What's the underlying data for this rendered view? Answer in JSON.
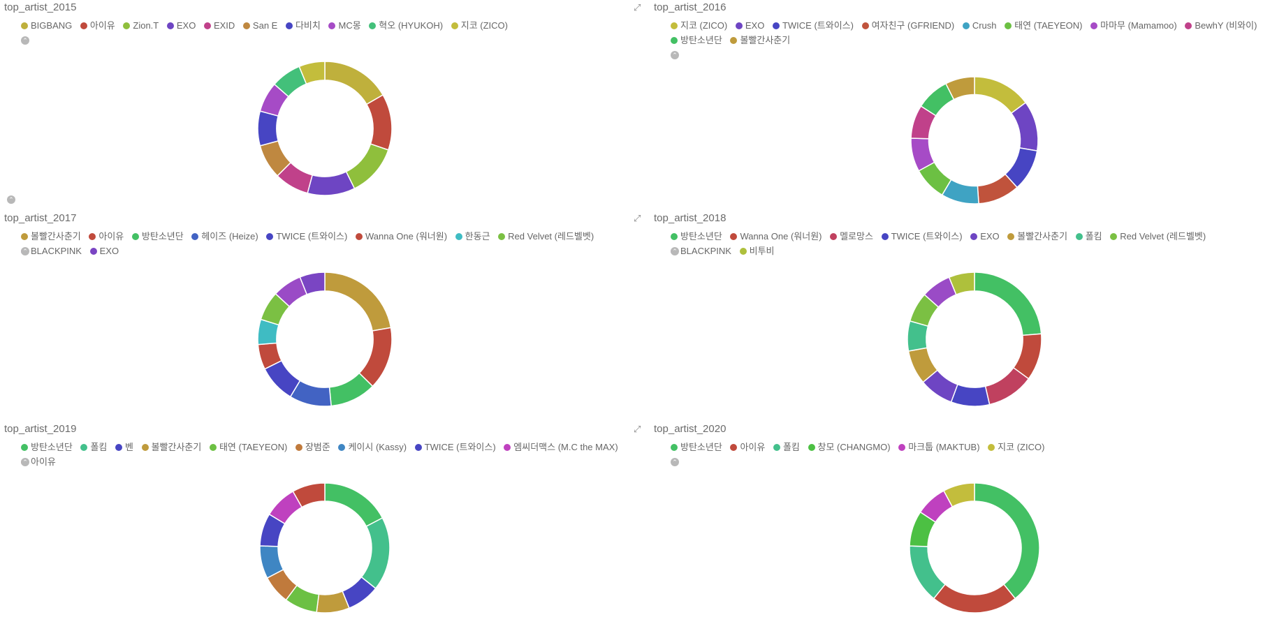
{
  "dashboard": {
    "panels": [
      {
        "title": "top_artist_2015",
        "legend": [
          {
            "label": "BIGBANG",
            "color": "#bfb03c"
          },
          {
            "label": "아이유",
            "color": "#c04a3c"
          },
          {
            "label": "Zion.T",
            "color": "#8fbf3c"
          },
          {
            "label": "EXO",
            "color": "#6e45c3"
          },
          {
            "label": "EXID",
            "color": "#c0418a"
          },
          {
            "label": "San E",
            "color": "#bf8840"
          },
          {
            "label": "다비치",
            "color": "#4745c3"
          },
          {
            "label": "MC몽",
            "color": "#a64bc6"
          },
          {
            "label": "혁오 (HYUKOH)",
            "color": "#43c07a"
          },
          {
            "label": "지코 (ZICO)",
            "color": "#c3bd3c"
          }
        ]
      },
      {
        "title": "top_artist_2016",
        "legend": [
          {
            "label": "지코 (ZICO)",
            "color": "#c3bd3c"
          },
          {
            "label": "EXO",
            "color": "#6e45c3"
          },
          {
            "label": "TWICE (트와이스)",
            "color": "#4745c3"
          },
          {
            "label": "여자친구 (GFRIEND)",
            "color": "#c0533c"
          },
          {
            "label": "Crush",
            "color": "#3fa3c3"
          },
          {
            "label": "태연 (TAEYEON)",
            "color": "#6cc043"
          },
          {
            "label": "마마무 (Mamamoo)",
            "color": "#a64bc6"
          },
          {
            "label": "BewhY (비와이)",
            "color": "#c0418a"
          },
          {
            "label": "방탄소년단",
            "color": "#43c064"
          },
          {
            "label": "볼빨간사춘기",
            "color": "#bf9b3c"
          }
        ]
      },
      {
        "title": "top_artist_2017",
        "legend": [
          {
            "label": "볼빨간사춘기",
            "color": "#bf9b3c"
          },
          {
            "label": "아이유",
            "color": "#c04a3c"
          },
          {
            "label": "방탄소년단",
            "color": "#43c064"
          },
          {
            "label": "헤이즈 (Heize)",
            "color": "#4263c3"
          },
          {
            "label": "TWICE (트와이스)",
            "color": "#4745c3"
          },
          {
            "label": "Wanna One (워너원)",
            "color": "#c04a3c"
          },
          {
            "label": "한동근",
            "color": "#3fbcc3"
          },
          {
            "label": "Red Velvet (레드벨벳)",
            "color": "#7bc043"
          },
          {
            "label": "BLACKPINK",
            "color": "#9a4bc6"
          },
          {
            "label": "EXO",
            "color": "#7a45c3"
          }
        ]
      },
      {
        "title": "top_artist_2018",
        "legend": [
          {
            "label": "방탄소년단",
            "color": "#43c064"
          },
          {
            "label": "Wanna One (워너원)",
            "color": "#c04a3c"
          },
          {
            "label": "멜로망스",
            "color": "#c0415f"
          },
          {
            "label": "TWICE (트와이스)",
            "color": "#4745c3"
          },
          {
            "label": "EXO",
            "color": "#6e45c3"
          },
          {
            "label": "볼빨간사춘기",
            "color": "#bf9b3c"
          },
          {
            "label": "폴킴",
            "color": "#43c08c"
          },
          {
            "label": "Red Velvet (레드벨벳)",
            "color": "#7bc043"
          },
          {
            "label": "BLACKPINK",
            "color": "#9a4bc6"
          },
          {
            "label": "비투비",
            "color": "#aec03c"
          }
        ]
      },
      {
        "title": "top_artist_2019",
        "legend": [
          {
            "label": "방탄소년단",
            "color": "#43c064"
          },
          {
            "label": "폴킴",
            "color": "#43c08c"
          },
          {
            "label": "벤",
            "color": "#4745c3"
          },
          {
            "label": "볼빨간사춘기",
            "color": "#bf9b3c"
          },
          {
            "label": "태연 (TAEYEON)",
            "color": "#6cc043"
          },
          {
            "label": "장범준",
            "color": "#c07a3c"
          },
          {
            "label": "케이시 (Kassy)",
            "color": "#3f86c3"
          },
          {
            "label": "TWICE (트와이스)",
            "color": "#4745c3"
          },
          {
            "label": "엠씨더맥스 (M.C the MAX)",
            "color": "#bf41bf"
          },
          {
            "label": "아이유",
            "color": "#c04a3c"
          }
        ]
      },
      {
        "title": "top_artist_2020",
        "legend": [
          {
            "label": "방탄소년단",
            "color": "#43c064"
          },
          {
            "label": "아이유",
            "color": "#c04a3c"
          },
          {
            "label": "폴킴",
            "color": "#43c08c"
          },
          {
            "label": "창모 (CHANGMO)",
            "color": "#4cc043"
          },
          {
            "label": "마크툽 (MAKTUB)",
            "color": "#bf41bf"
          },
          {
            "label": "지코 (ZICO)",
            "color": "#c3bd3c"
          }
        ]
      }
    ]
  },
  "chart_data": [
    {
      "type": "pie",
      "title": "top_artist_2015",
      "labels": [
        "BIGBANG",
        "아이유",
        "Zion.T",
        "EXO",
        "EXID",
        "San E",
        "다비치",
        "MC몽",
        "혁오 (HYUKOH)",
        "지코 (ZICO)"
      ],
      "values": [
        16,
        13,
        12,
        11,
        8,
        8,
        8,
        7,
        7,
        6
      ]
    },
    {
      "type": "pie",
      "title": "top_artist_2016",
      "labels": [
        "지코 (ZICO)",
        "EXO",
        "TWICE (트와이스)",
        "여자친구 (GFRIEND)",
        "Crush",
        "태연 (TAEYEON)",
        "마마무 (Mamamoo)",
        "BewhY (비와이)",
        "방탄소년단",
        "볼빨간사춘기"
      ],
      "values": [
        14,
        12,
        10,
        10,
        9,
        8,
        8,
        8,
        8,
        7
      ]
    },
    {
      "type": "pie",
      "title": "top_artist_2017",
      "labels": [
        "볼빨간사춘기",
        "아이유",
        "방탄소년단",
        "헤이즈 (Heize)",
        "TWICE (트와이스)",
        "Wanna One (워너원)",
        "한동근",
        "Red Velvet (레드벨벳)",
        "BLACKPINK",
        "EXO"
      ],
      "values": [
        22,
        15,
        11,
        10,
        9,
        6,
        6,
        7,
        7,
        6
      ]
    },
    {
      "type": "pie",
      "title": "top_artist_2018",
      "labels": [
        "방탄소년단",
        "Wanna One (워너원)",
        "멜로망스",
        "TWICE (트와이스)",
        "EXO",
        "볼빨간사춘기",
        "폴킴",
        "Red Velvet (레드벨벳)",
        "BLACKPINK",
        "비투비"
      ],
      "values": [
        23,
        11,
        11,
        9,
        8,
        8,
        7,
        7,
        7,
        6
      ]
    },
    {
      "type": "pie",
      "title": "top_artist_2019",
      "labels": [
        "방탄소년단",
        "폴킴",
        "벤",
        "볼빨간사춘기",
        "태연 (TAEYEON)",
        "장범준",
        "케이시 (Kassy)",
        "TWICE (트와이스)",
        "엠씨더맥스 (M.C the MAX)",
        "아이유"
      ],
      "values": [
        17,
        18,
        8,
        8,
        8,
        7,
        8,
        8,
        8,
        8
      ]
    },
    {
      "type": "pie",
      "title": "top_artist_2020",
      "labels": [
        "방탄소년단",
        "아이유",
        "폴킴",
        "창모 (CHANGMO)",
        "마크툽 (MAKTUB)",
        "지코 (ZICO)"
      ],
      "values": [
        40,
        22,
        15,
        9,
        8,
        8
      ]
    }
  ]
}
